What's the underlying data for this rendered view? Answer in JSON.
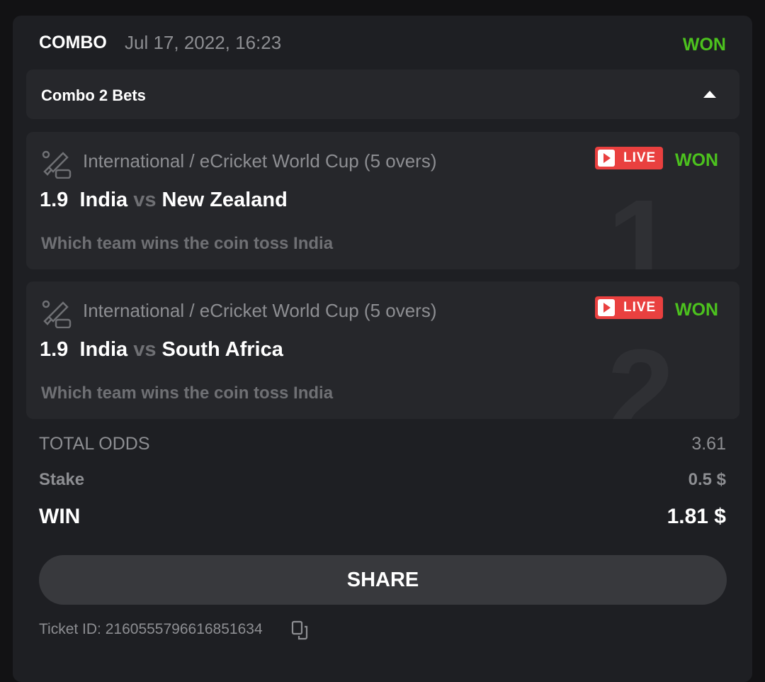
{
  "header": {
    "type": "COMBO",
    "date": "Jul 17, 2022, 16:23",
    "status": "WON"
  },
  "combo": {
    "label": "Combo 2 Bets"
  },
  "bets": [
    {
      "index": "1",
      "league": "International / eCricket World Cup (5 overs)",
      "live": "LIVE",
      "status": "WON",
      "odds": "1.9",
      "home": "India",
      "vs": "vs",
      "away": "New Zealand",
      "market": "Which team wins the coin toss India"
    },
    {
      "index": "2",
      "league": "International / eCricket World Cup (5 overs)",
      "live": "LIVE",
      "status": "WON",
      "odds": "1.9",
      "home": "India",
      "vs": "vs",
      "away": "South Africa",
      "market": "Which team wins the coin toss India"
    }
  ],
  "totals": {
    "odds_label": "TOTAL ODDS",
    "odds": "3.61",
    "stake_label": "Stake",
    "stake": "0.5 $",
    "win_label": "WIN",
    "win": "1.81 $"
  },
  "share_label": "SHARE",
  "ticket": "Ticket ID: 2160555796616851634",
  "colors": {
    "won": "#4cc21e",
    "live": "#e9403f"
  }
}
